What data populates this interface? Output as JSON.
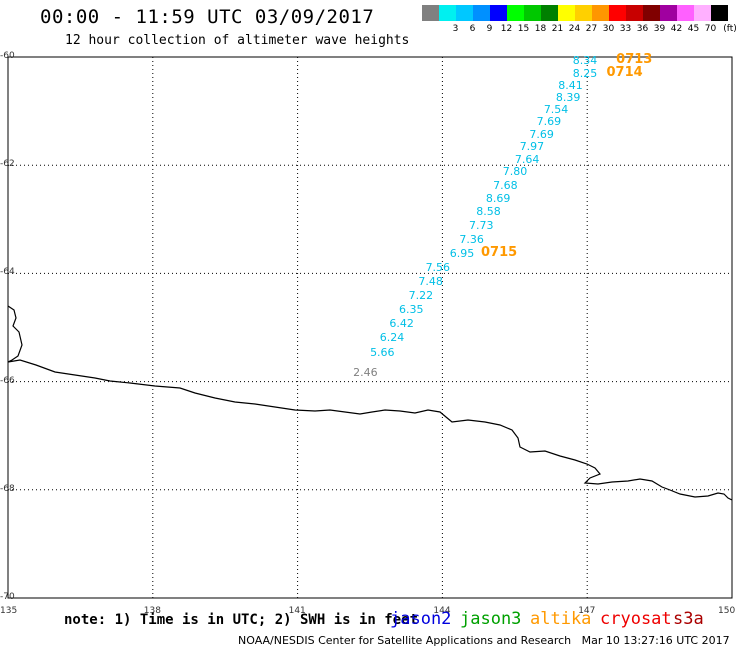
{
  "header": {
    "title": "00:00 - 11:59 UTC 03/09/2017",
    "subtitle": "12 hour collection of altimeter wave heights"
  },
  "scale": {
    "unit": "(ft)",
    "swatches": [
      {
        "color": "#808080",
        "label": ""
      },
      {
        "color": "#00f0f0",
        "label": "3"
      },
      {
        "color": "#00c8ff",
        "label": "6"
      },
      {
        "color": "#0090ff",
        "label": "9"
      },
      {
        "color": "#0000ff",
        "label": "12"
      },
      {
        "color": "#00ff00",
        "label": "15"
      },
      {
        "color": "#00c800",
        "label": "18"
      },
      {
        "color": "#008000",
        "label": "21"
      },
      {
        "color": "#ffff00",
        "label": "24"
      },
      {
        "color": "#ffd000",
        "label": "27"
      },
      {
        "color": "#ff9600",
        "label": "30"
      },
      {
        "color": "#ff0000",
        "label": "33"
      },
      {
        "color": "#c80000",
        "label": "36"
      },
      {
        "color": "#800000",
        "label": "39"
      },
      {
        "color": "#a000a0",
        "label": "42"
      },
      {
        "color": "#ff60ff",
        "label": "45"
      },
      {
        "color": "#ffb0ff",
        "label": "70"
      },
      {
        "color": "#000000",
        "label": ""
      }
    ]
  },
  "axes": {
    "lat_labels": [
      "-60",
      "-62",
      "-64",
      "-66",
      "-68",
      "-70"
    ],
    "lon_labels": [
      "135",
      "138",
      "141",
      "144",
      "147",
      "150"
    ]
  },
  "observations": [
    {
      "value": "8.34",
      "lat": -60.05,
      "lon": 146.95
    },
    {
      "value": "8.25",
      "lat": -60.3,
      "lon": 146.95
    },
    {
      "value": "8.41",
      "lat": -60.51,
      "lon": 146.65
    },
    {
      "value": "8.39",
      "lat": -60.74,
      "lon": 146.6
    },
    {
      "value": "7.54",
      "lat": -60.96,
      "lon": 146.35
    },
    {
      "value": "7.69",
      "lat": -61.19,
      "lon": 146.2
    },
    {
      "value": "7.69",
      "lat": -61.42,
      "lon": 146.05
    },
    {
      "value": "7.97",
      "lat": -61.65,
      "lon": 145.85
    },
    {
      "value": "7.64",
      "lat": -61.88,
      "lon": 145.75
    },
    {
      "value": "7.80",
      "lat": -62.11,
      "lon": 145.5
    },
    {
      "value": "7.68",
      "lat": -62.37,
      "lon": 145.3
    },
    {
      "value": "8.69",
      "lat": -62.6,
      "lon": 145.15
    },
    {
      "value": "8.58",
      "lat": -62.84,
      "lon": 144.95
    },
    {
      "value": "7.73",
      "lat": -63.1,
      "lon": 144.8
    },
    {
      "value": "7.36",
      "lat": -63.37,
      "lon": 144.6
    },
    {
      "value": "6.95",
      "lat": -63.62,
      "lon": 144.4
    },
    {
      "value": "7.56",
      "lat": -63.89,
      "lon": 143.9
    },
    {
      "value": "7.48",
      "lat": -64.14,
      "lon": 143.75
    },
    {
      "value": "7.22",
      "lat": -64.4,
      "lon": 143.55
    },
    {
      "value": "6.35",
      "lat": -64.65,
      "lon": 143.35
    },
    {
      "value": "6.42",
      "lat": -64.91,
      "lon": 143.15
    },
    {
      "value": "6.24",
      "lat": -65.18,
      "lon": 142.95
    },
    {
      "value": "5.66",
      "lat": -65.45,
      "lon": 142.75
    },
    {
      "value": "2.46",
      "lat": -65.83,
      "lon": 142.4,
      "gray": true
    }
  ],
  "time_labels": [
    {
      "text": "0713",
      "lat": -60.05,
      "lon": 147.6
    },
    {
      "text": "0714",
      "lat": -60.3,
      "lon": 147.4
    },
    {
      "text": "0715",
      "lat": -63.62,
      "lon": 144.8
    }
  ],
  "note": "note: 1) Time is in UTC; 2) SWH is in feet",
  "satellites": [
    {
      "name": "jason2",
      "color": "#0000dd"
    },
    {
      "name": "jason3",
      "color": "#00a000"
    },
    {
      "name": "altika",
      "color": "#ff9900"
    },
    {
      "name": "cryosat",
      "color": "#ee0000"
    },
    {
      "name": "s3a",
      "color": "#aa0000"
    }
  ],
  "footer": {
    "source": "NOAA/NESDIS Center for Satellite Applications and Research",
    "timestamp": "Mar 10 13:27:16 UTC 2017"
  }
}
